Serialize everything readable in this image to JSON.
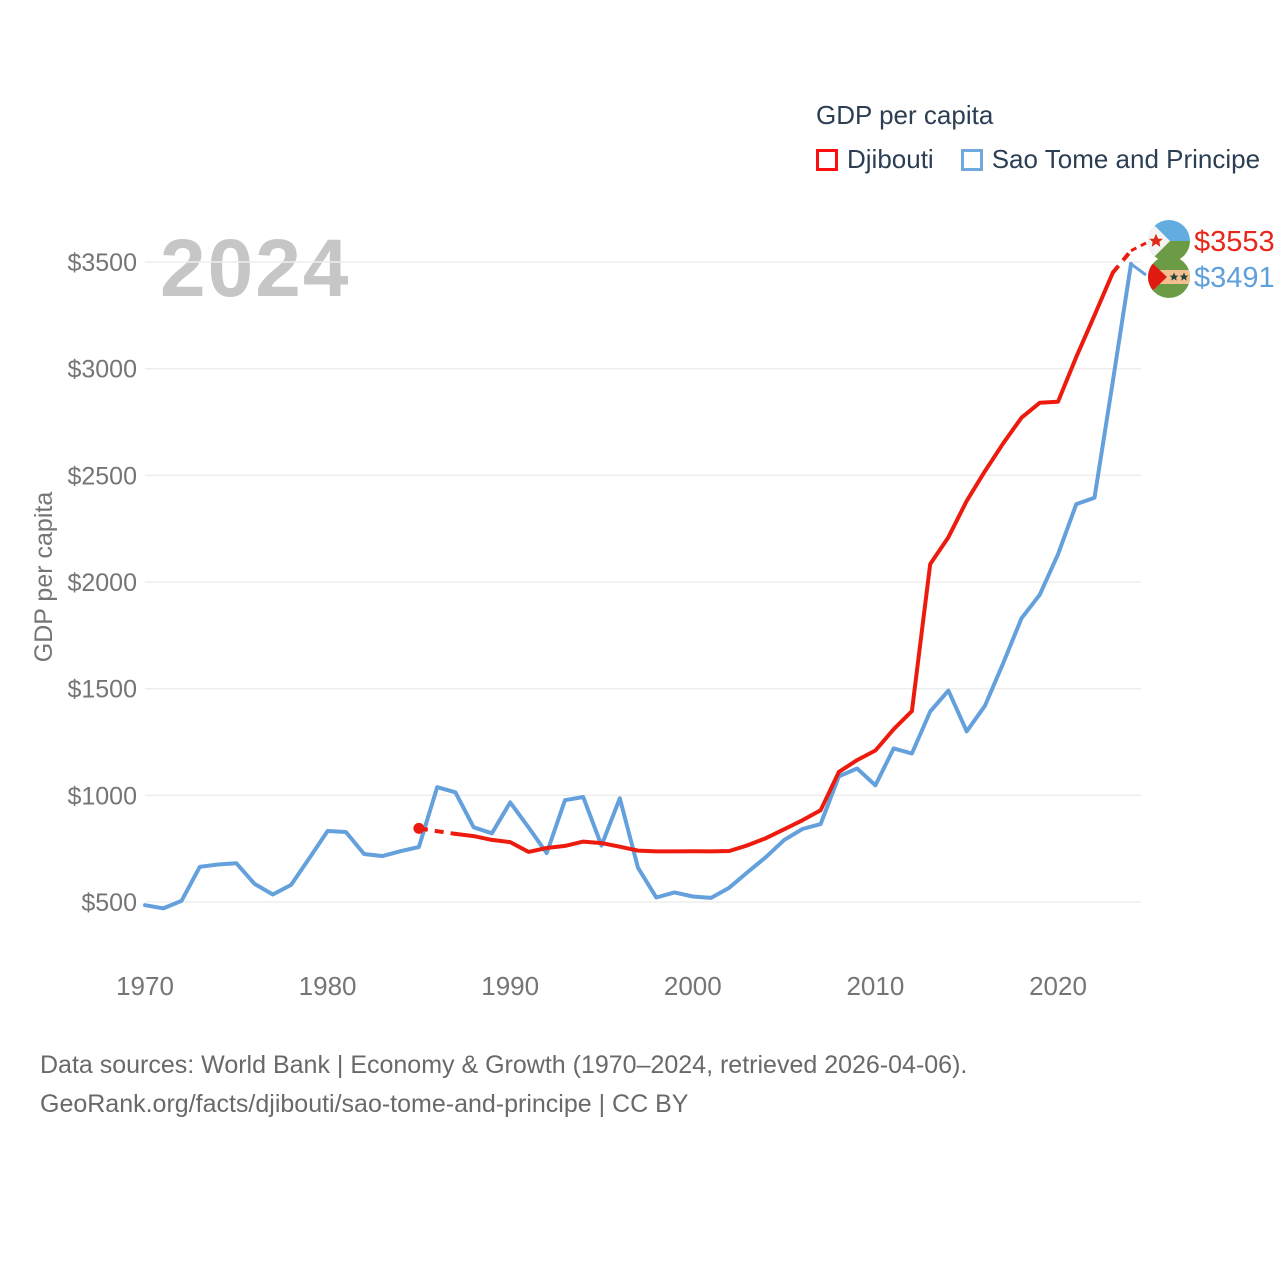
{
  "legend": {
    "title": "GDP per capita",
    "items": [
      {
        "label": "Djibouti",
        "color": "#fb0f0f"
      },
      {
        "label": "Sao Tome and Principe",
        "color": "#6fa8dc"
      }
    ]
  },
  "footer": {
    "line1": "Data sources: World Bank | Economy & Growth (1970–2024, retrieved 2026-04-06).",
    "line2": "GeoRank.org/facts/djibouti/sao-tome-and-principe | CC BY"
  },
  "chart_data": {
    "type": "line",
    "title": "GDP per capita",
    "watermark": "2024",
    "ylabel": "GDP per capita",
    "y_tick_prefix": "$",
    "y_ticks": [
      500,
      1000,
      1500,
      2000,
      2500,
      3000,
      3500
    ],
    "x_ticks": [
      1970,
      1980,
      1990,
      2000,
      2010,
      2020
    ],
    "xlim": [
      1970,
      2024
    ],
    "ylim": [
      500,
      3500
    ],
    "grid": "horizontal",
    "legend_position": "top-right",
    "colors": {
      "grid": "#ededed",
      "axis_text": "#757575",
      "watermark": "#c6c6c6"
    },
    "series": [
      {
        "name": "Djibouti",
        "color": "#ed1b0d",
        "start_year": 1985,
        "dashed_head_until": 1987,
        "dashed_tail_from": 2023,
        "end_label": "$3553",
        "values": [
          845,
          832,
          819,
          809,
          791,
          781,
          735,
          753,
          763,
          783,
          776,
          759,
          741,
          737,
          737,
          738,
          737,
          739,
          766,
          799,
          841,
          883,
          930,
          1110,
          1165,
          1210,
          1310,
          1395,
          2084,
          2210,
          2380,
          2520,
          2650,
          2770,
          2840,
          2845,
          3055,
          3250,
          3450,
          3553
        ]
      },
      {
        "name": "Sao Tome and Principe",
        "color": "#64a0dc",
        "start_year": 1970,
        "end_label": "$3491",
        "values": [
          485,
          470,
          505,
          665,
          676,
          682,
          585,
          535,
          580,
          705,
          833,
          828,
          725,
          715,
          738,
          758,
          1038,
          1014,
          850,
          822,
          967,
          850,
          729,
          977,
          992,
          765,
          986,
          661,
          521,
          545,
          526,
          519,
          567,
          640,
          710,
          790,
          842,
          865,
          1089,
          1126,
          1047,
          1220,
          1196,
          1393,
          1491,
          1300,
          1420,
          1620,
          1830,
          1940,
          2130,
          2365,
          2395,
          2940,
          3491
        ]
      }
    ]
  }
}
